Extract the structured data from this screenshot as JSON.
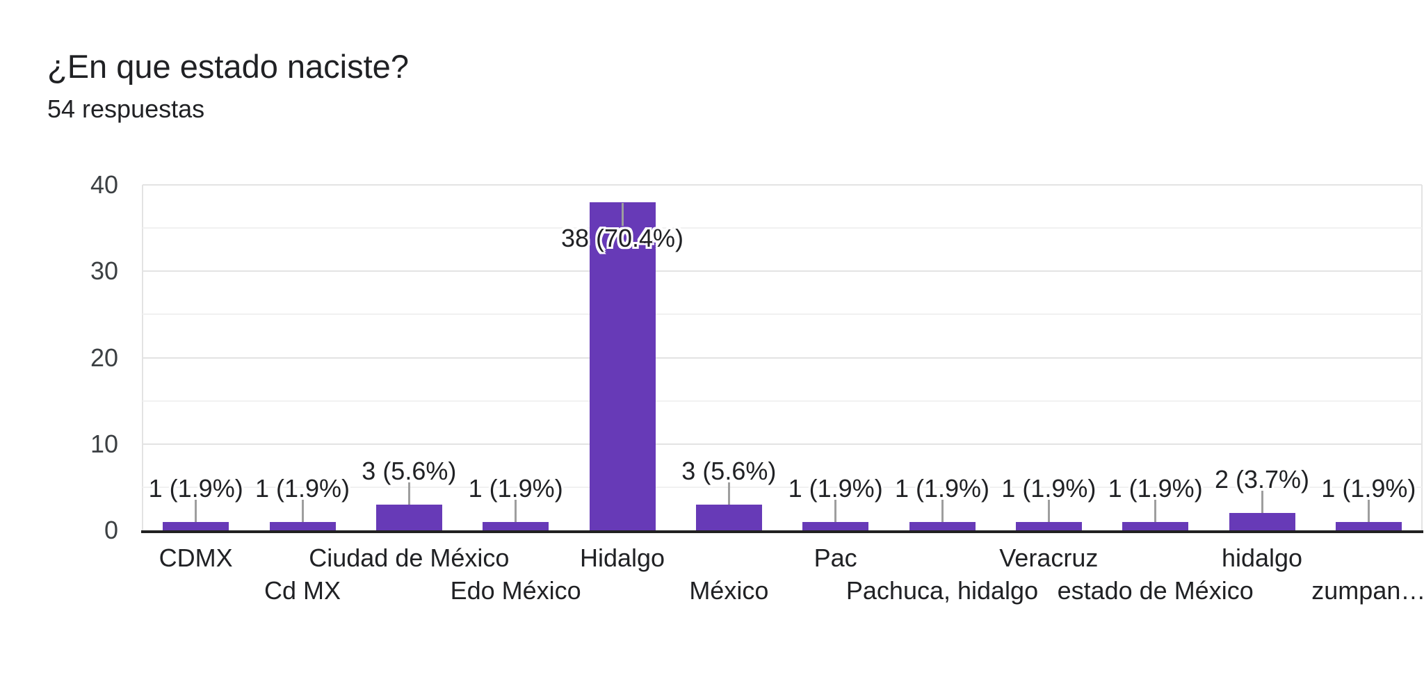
{
  "header": {
    "title": "¿En que estado naciste?",
    "subtitle": "54 respuestas"
  },
  "chart_data": {
    "type": "bar",
    "title": "¿En que estado naciste?",
    "subtitle": "54 respuestas",
    "categories": [
      "CDMX",
      "Cd MX",
      "Ciudad de México",
      "Edo México",
      "Hidalgo",
      "México",
      "Pac",
      "Pachuca, hidalgo",
      "Veracruz",
      "estado de México",
      "hidalgo",
      "zumpan…"
    ],
    "values": [
      1,
      1,
      3,
      1,
      38,
      3,
      1,
      1,
      1,
      1,
      2,
      1
    ],
    "value_labels": [
      "1 (1.9%)",
      "1 (1.9%)",
      "3 (5.6%)",
      "1 (1.9%)",
      "38 (70.4%)",
      "3 (5.6%)",
      "1 (1.9%)",
      "1 (1.9%)",
      "1 (1.9%)",
      "1 (1.9%)",
      "2 (3.7%)",
      "1 (1.9%)"
    ],
    "xlabel": "",
    "ylabel": "",
    "ylim": [
      0,
      40
    ],
    "yticks": [
      0,
      10,
      20,
      30,
      40
    ],
    "minor_gridlines": [
      5,
      15,
      25,
      35
    ],
    "grid": "on",
    "legend": "none",
    "bar_color": "#673AB7",
    "axis_color": "#212121",
    "stem_color": "#9e9e9e",
    "total_responses": 54
  }
}
